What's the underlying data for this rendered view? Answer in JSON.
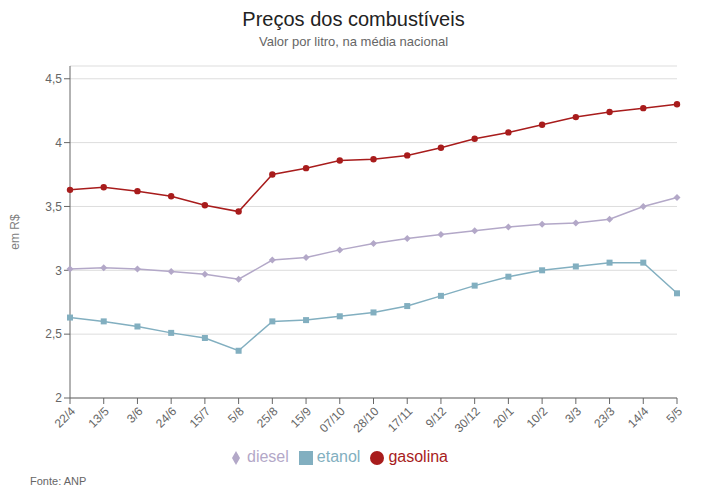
{
  "chart_data": {
    "type": "line",
    "title": "Preços dos combustíveis",
    "subtitle": "Valor por litro, na média nacional",
    "y_label": "em R$",
    "annotations": [
      "Fonte: ANP"
    ],
    "categories": [
      "22/4",
      "13/5",
      "3/6",
      "24/6",
      "15/7",
      "5/8",
      "25/8",
      "15/9",
      "07/10",
      "28/10",
      "17/11",
      "9/12",
      "30/12",
      "20/1",
      "10/2",
      "3/3",
      "23/3",
      "14/4",
      "5/5"
    ],
    "series": [
      {
        "name": "gasolina",
        "color": "#a81c1c",
        "marker": "circle",
        "values": [
          3.63,
          3.65,
          3.62,
          3.58,
          3.51,
          3.46,
          3.75,
          3.8,
          3.86,
          3.87,
          3.9,
          3.96,
          4.03,
          4.08,
          4.14,
          4.2,
          4.24,
          4.27,
          4.3
        ]
      },
      {
        "name": "diesel",
        "color": "#b3a8c8",
        "marker": "diamond",
        "values": [
          3.01,
          3.02,
          3.01,
          2.99,
          2.97,
          2.93,
          3.08,
          3.1,
          3.16,
          3.21,
          3.25,
          3.28,
          3.31,
          3.34,
          3.36,
          3.37,
          3.4,
          3.5,
          3.57
        ]
      },
      {
        "name": "etanol",
        "color": "#82afc0",
        "marker": "square",
        "values": [
          2.63,
          2.6,
          2.56,
          2.51,
          2.47,
          2.37,
          2.6,
          2.61,
          2.64,
          2.67,
          2.72,
          2.8,
          2.88,
          2.95,
          3.0,
          3.03,
          3.06,
          3.06,
          2.82
        ]
      }
    ],
    "ylim": [
      2.0,
      4.6
    ],
    "yticks": [
      2,
      {
        "value": 2.5,
        "label": "2,5"
      },
      3,
      {
        "value": 3.5,
        "label": "3,5"
      },
      4,
      {
        "value": 4.5,
        "label": "4,5"
      }
    ],
    "grid": "y",
    "legend": "bottom"
  }
}
